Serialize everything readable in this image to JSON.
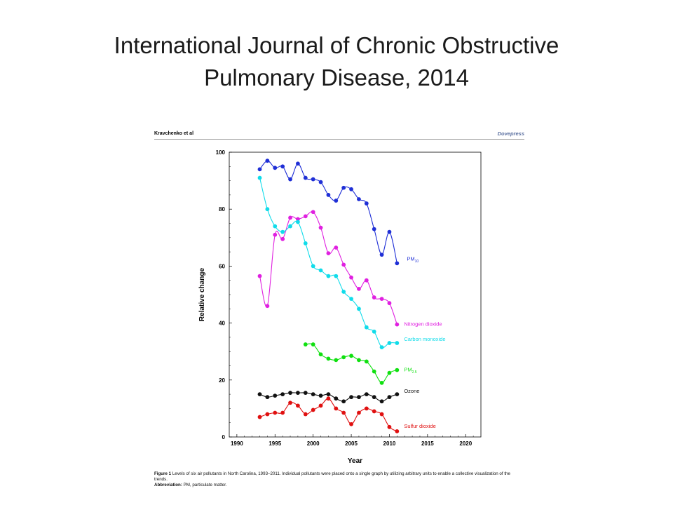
{
  "slide": {
    "title_line1": "International Journal of Chronic Obstructive",
    "title_line2": "Pulmonary Disease, 2014"
  },
  "paper": {
    "header_author": "Kravchenko et al",
    "header_brand": "Dovepress",
    "caption_figure_label": "Figure 1",
    "caption_text": "Levels of six air pollutants in North Carolina, 1993–2011. Individual pollutants were placed onto a single graph by utilizing arbitrary units to enable a collective visualization of the trends.",
    "caption_abbrev_label": "Abbreviation:",
    "caption_abbrev_text": "PM, particulate matter."
  },
  "chart_data": {
    "type": "line",
    "xlabel": "Year",
    "ylabel": "Relative change",
    "xlim": [
      1989,
      2022
    ],
    "ylim": [
      0,
      100
    ],
    "xticks": [
      1990,
      1995,
      2000,
      2005,
      2010,
      2015,
      2020
    ],
    "yticks": [
      0,
      20,
      40,
      60,
      80,
      100
    ],
    "grid": false,
    "legend": "inline labels at right end of each series",
    "series": [
      {
        "name": "PM10",
        "label_main": "PM",
        "label_sub": "10",
        "color": "#1f2fd6",
        "x": [
          1993,
          1994,
          1995,
          1996,
          1997,
          1998,
          1999,
          2000,
          2001,
          2002,
          2003,
          2004,
          2005,
          2006,
          2007,
          2008,
          2009,
          2010,
          2011
        ],
        "y": [
          94,
          97,
          94.5,
          95,
          90.5,
          96,
          91,
          90.5,
          89.5,
          85,
          83,
          87.5,
          87,
          83.5,
          82,
          73,
          64,
          72,
          61
        ]
      },
      {
        "name": "Nitrogen dioxide",
        "color": "#e020e0",
        "x": [
          1993,
          1994,
          1995,
          1996,
          1997,
          1998,
          1999,
          2000,
          2001,
          2002,
          2003,
          2004,
          2005,
          2006,
          2007,
          2008,
          2009,
          2010,
          2011
        ],
        "y": [
          56.5,
          46,
          71,
          69.5,
          77,
          76.5,
          77.5,
          79,
          73.5,
          64.5,
          66.5,
          60.5,
          56,
          52,
          55,
          49,
          48.5,
          47,
          39.5
        ]
      },
      {
        "name": "Carbon monoxide",
        "color": "#10dcea",
        "x": [
          1993,
          1994,
          1995,
          1996,
          1997,
          1998,
          1999,
          2000,
          2001,
          2002,
          2003,
          2004,
          2005,
          2006,
          2007,
          2008,
          2009,
          2010,
          2011
        ],
        "y": [
          91,
          80,
          74,
          72,
          74,
          75.5,
          68,
          60,
          58.5,
          56.5,
          56.5,
          51,
          48.5,
          45,
          38.5,
          37,
          31.5,
          33,
          33
        ]
      },
      {
        "name": "PM2.5",
        "label_main": "PM",
        "label_sub": "2.5",
        "color": "#10e010",
        "x": [
          1999,
          2000,
          2001,
          2002,
          2003,
          2004,
          2005,
          2006,
          2007,
          2008,
          2009,
          2010,
          2011
        ],
        "y": [
          32.5,
          32.5,
          29,
          27.5,
          27,
          28,
          28.5,
          27,
          26.5,
          23,
          19,
          22.5,
          23.5
        ]
      },
      {
        "name": "Ozone",
        "color": "#111111",
        "x": [
          1993,
          1994,
          1995,
          1996,
          1997,
          1998,
          1999,
          2000,
          2001,
          2002,
          2003,
          2004,
          2005,
          2006,
          2007,
          2008,
          2009,
          2010,
          2011
        ],
        "y": [
          15,
          14,
          14.5,
          15,
          15.5,
          15.5,
          15.5,
          15,
          14.5,
          15,
          13.5,
          12.5,
          14,
          14,
          15,
          14,
          12.5,
          14,
          15
        ]
      },
      {
        "name": "Sulfur dioxide",
        "color": "#e01010",
        "x": [
          1993,
          1994,
          1995,
          1996,
          1997,
          1998,
          1999,
          2000,
          2001,
          2002,
          2003,
          2004,
          2005,
          2006,
          2007,
          2008,
          2009,
          2010,
          2011
        ],
        "y": [
          7,
          8,
          8.5,
          8.5,
          12,
          11,
          8,
          9.5,
          11,
          13.5,
          10,
          8.5,
          4.5,
          8.5,
          10,
          9,
          8,
          3.5,
          2
        ]
      }
    ]
  }
}
